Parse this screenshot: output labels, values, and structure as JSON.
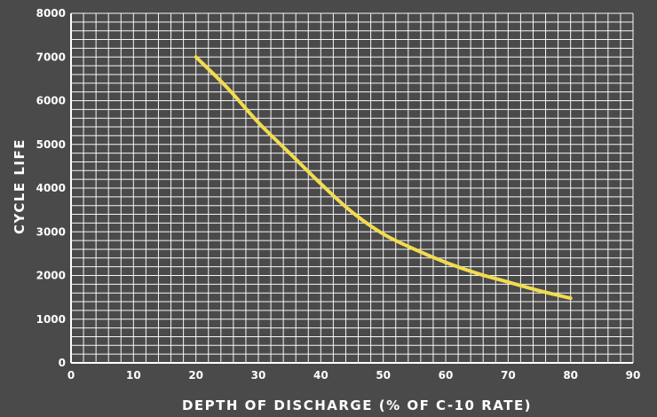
{
  "chart_data": {
    "type": "line",
    "xlabel": "DEPTH OF DISCHARGE (% OF C-10 RATE)",
    "ylabel": "CYCLE LIFE",
    "xlim": [
      0,
      90
    ],
    "ylim": [
      0,
      8000
    ],
    "x_ticks": [
      0,
      10,
      20,
      30,
      40,
      50,
      60,
      70,
      80,
      90
    ],
    "y_ticks": [
      0,
      1000,
      2000,
      3000,
      4000,
      5000,
      6000,
      7000,
      8000
    ],
    "grid": true,
    "series": [
      {
        "color": "#f2dc4e",
        "x": [
          20,
          25,
          30,
          35,
          40,
          45,
          50,
          55,
          60,
          65,
          70,
          75,
          80
        ],
        "y": [
          7000,
          6300,
          5500,
          4800,
          4100,
          3450,
          2950,
          2600,
          2300,
          2050,
          1850,
          1650,
          1480
        ]
      }
    ]
  },
  "colors": {
    "background": "#4a4a4a",
    "grid": "#ffffff",
    "line": "#f2dc4e",
    "text": "#ffffff"
  }
}
